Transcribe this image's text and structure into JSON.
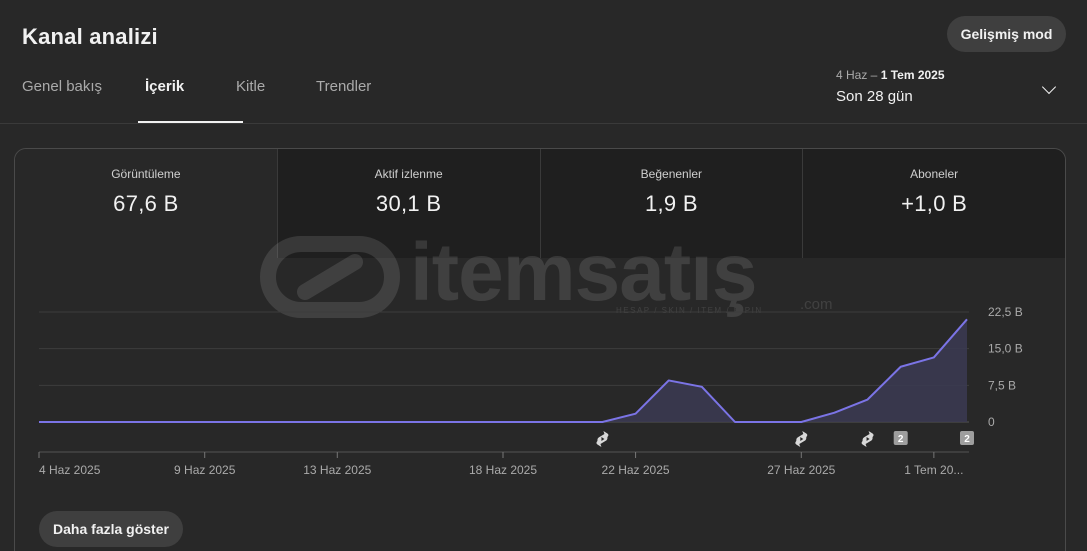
{
  "header": {
    "title": "Kanal analizi",
    "advanced_mode_label": "Gelişmiş mod"
  },
  "tabs": [
    {
      "label": "Genel bakış",
      "active": false
    },
    {
      "label": "İçerik",
      "active": true
    },
    {
      "label": "Kitle",
      "active": false
    },
    {
      "label": "Trendler",
      "active": false
    }
  ],
  "date_picker": {
    "range_start": "4 Haz –",
    "range_end": "1 Tem 2025",
    "label": "Son 28 gün"
  },
  "metrics": [
    {
      "label": "Görüntüleme",
      "value": "67,6 B"
    },
    {
      "label": "Aktif izlenme",
      "value": "30,1 B"
    },
    {
      "label": "Beğenenler",
      "value": "1,9 B"
    },
    {
      "label": "Aboneler",
      "value": "+1,0 B"
    }
  ],
  "watermark": {
    "text": "itemsatış",
    "subtext": "HESAP / SKIN / ITEM / E-PIN",
    "suffix": ".com"
  },
  "chart_data": {
    "type": "area",
    "series": [
      {
        "values": [
          0,
          0,
          0,
          0,
          0,
          0,
          0,
          0,
          0,
          0,
          0,
          0,
          0,
          0,
          0,
          0,
          0,
          0,
          1.7,
          8.5,
          7.2,
          0,
          0,
          0,
          1.9,
          4.6,
          11.3,
          13.2,
          21
        ]
      }
    ],
    "x": [
      "4 Haz 2025",
      "5 Haz",
      "6 Haz",
      "7 Haz",
      "8 Haz",
      "9 Haz 2025",
      "10 Haz",
      "11 Haz",
      "12 Haz",
      "13 Haz 2025",
      "14 Haz",
      "15 Haz",
      "16 Haz",
      "17 Haz",
      "18 Haz 2025",
      "19 Haz",
      "20 Haz",
      "21 Haz",
      "22 Haz 2025",
      "23 Haz",
      "24 Haz",
      "25 Haz",
      "26 Haz",
      "27 Haz 2025",
      "28 Haz",
      "29 Haz",
      "30 Haz",
      "1 Tem 20...",
      "2 Tem"
    ],
    "x_tick_labels": [
      "4 Haz 2025",
      "9 Haz 2025",
      "13 Haz 2025",
      "18 Haz 2025",
      "22 Haz 2025",
      "27 Haz 2025",
      "1 Tem 20..."
    ],
    "x_tick_index": [
      0,
      5,
      9,
      14,
      18,
      23,
      27
    ],
    "y_ticks": [
      0,
      7.5,
      15,
      22.5
    ],
    "y_tick_labels": [
      "0",
      "7,5 B",
      "15,0 B",
      "22,5 B"
    ],
    "ylim": [
      0,
      22.5
    ],
    "line_color": "#7b74e6",
    "fill_color": "#3b3a52",
    "markers": [
      {
        "index": 17,
        "kind": "shorts-icon"
      },
      {
        "index": 23,
        "kind": "shorts-icon"
      },
      {
        "index": 25,
        "kind": "shorts-icon"
      },
      {
        "index": 26,
        "kind": "count-badge",
        "label": "2"
      },
      {
        "index": 28,
        "kind": "count-badge",
        "label": "2"
      }
    ]
  },
  "footer": {
    "show_more_label": "Daha fazla göster"
  }
}
